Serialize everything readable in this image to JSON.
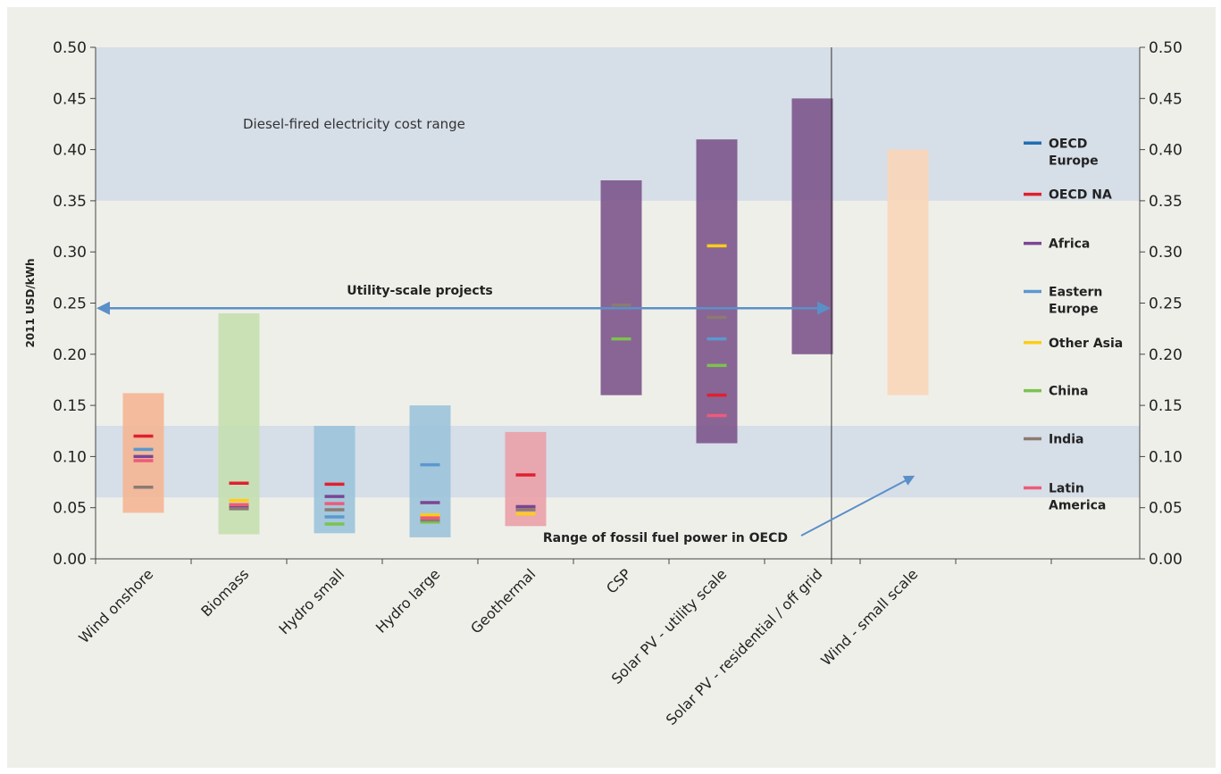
{
  "chart_data": {
    "type": "bar",
    "title": "",
    "xlabel": "",
    "ylabel": "2011 USD/kWh",
    "ylim": [
      0,
      0.5
    ],
    "y_ticks": [
      "0.00",
      "0.05",
      "0.10",
      "0.15",
      "0.20",
      "0.25",
      "0.30",
      "0.35",
      "0.40",
      "0.45",
      "0.50"
    ],
    "grid": false,
    "legend_position": "right",
    "categories": [
      "Wind onshore",
      "Biomass",
      "Hydro small",
      "Hydro large",
      "Geothermal",
      "CSP",
      "Solar PV - utility scale",
      "Solar PV - residential / off grid",
      "Wind - small scale"
    ],
    "ranges": [
      {
        "category": "Wind onshore",
        "low": 0.045,
        "high": 0.162,
        "color": "#f5b591"
      },
      {
        "category": "Biomass",
        "low": 0.024,
        "high": 0.24,
        "color": "#c5dfae"
      },
      {
        "category": "Hydro small",
        "low": 0.025,
        "high": 0.13,
        "color": "#9bc3d9"
      },
      {
        "category": "Hydro large",
        "low": 0.021,
        "high": 0.15,
        "color": "#9bc3d9"
      },
      {
        "category": "Geothermal",
        "low": 0.032,
        "high": 0.124,
        "color": "#ea9ea6"
      },
      {
        "category": "CSP",
        "low": 0.16,
        "high": 0.37,
        "color": "#7a5289"
      },
      {
        "category": "Solar PV - utility scale",
        "low": 0.113,
        "high": 0.41,
        "color": "#7a5289"
      },
      {
        "category": "Solar PV - residential / off grid",
        "low": 0.2,
        "high": 0.45,
        "color": "#7a5289"
      },
      {
        "category": "Wind - small scale",
        "low": 0.16,
        "high": 0.4,
        "color": "#fbd6b7"
      }
    ],
    "series": [
      {
        "name": "OECD Europe",
        "color": "#1f6fb4",
        "values": [
          null,
          null,
          null,
          null,
          null,
          null,
          null,
          null,
          null
        ]
      },
      {
        "name": "OECD NA",
        "color": "#e0202e",
        "values": [
          0.12,
          0.074,
          0.073,
          null,
          0.082,
          null,
          0.16,
          null,
          null
        ]
      },
      {
        "name": "Africa",
        "color": "#7b4594",
        "values": [
          0.1,
          0.05,
          0.061,
          0.055,
          0.051,
          null,
          null,
          null,
          null
        ]
      },
      {
        "name": "Eastern Europe",
        "color": "#5b98cf",
        "values": [
          0.107,
          null,
          0.041,
          0.092,
          null,
          null,
          0.215,
          null,
          null
        ]
      },
      {
        "name": "Other Asia",
        "color": "#fdcc1a",
        "values": [
          null,
          0.057,
          null,
          0.043,
          0.044,
          null,
          0.306,
          null,
          null
        ]
      },
      {
        "name": "China",
        "color": "#7dc24e",
        "values": [
          null,
          null,
          0.034,
          0.036,
          null,
          0.215,
          0.189,
          null,
          null
        ]
      },
      {
        "name": "India",
        "color": "#8b7b72",
        "values": [
          0.07,
          0.049,
          0.048,
          0.038,
          0.048,
          0.248,
          0.236,
          null,
          null
        ]
      },
      {
        "name": "Latin America",
        "color": "#ee5a7a",
        "values": [
          0.096,
          0.053,
          0.054,
          0.04,
          null,
          null,
          0.14,
          null,
          null
        ]
      }
    ],
    "bands": [
      {
        "label": "Diesel-fired electricity cost range",
        "low": 0.35,
        "high": 0.5
      },
      {
        "label": "Range of fossil fuel power in OECD",
        "low": 0.06,
        "high": 0.13
      }
    ],
    "annotations": {
      "utility_scale": "Utility-scale projects"
    }
  }
}
